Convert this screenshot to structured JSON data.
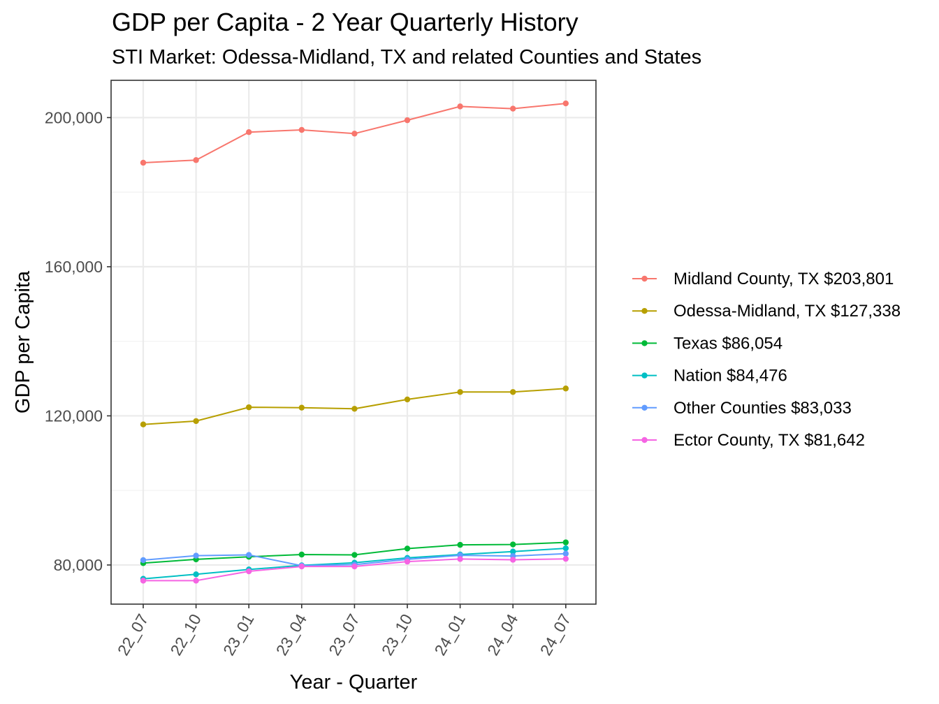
{
  "chart_data": {
    "type": "line",
    "title": "GDP per Capita - 2 Year Quarterly History",
    "subtitle": "STI Market: Odessa-Midland, TX and related Counties and States",
    "xlabel": "Year - Quarter",
    "ylabel": "GDP per Capita",
    "categories": [
      "22_07",
      "22_10",
      "23_01",
      "23_04",
      "23_07",
      "23_10",
      "24_01",
      "24_04",
      "24_07"
    ],
    "ylim": [
      69500,
      210000
    ],
    "yticks": [
      80000,
      120000,
      160000,
      200000
    ],
    "ytick_labels": [
      "80,000",
      "120,000",
      "160,000",
      "200,000"
    ],
    "grid": true,
    "legend_position": "right",
    "series": [
      {
        "name": "Midland County, TX $203,801",
        "color": "#F8766D",
        "values": [
          187900,
          188600,
          196100,
          196700,
          195700,
          199300,
          203000,
          202400,
          203801
        ]
      },
      {
        "name": "Odessa-Midland, TX $127,338",
        "color": "#B79F00",
        "values": [
          117700,
          118600,
          122300,
          122200,
          121900,
          124400,
          126400,
          126400,
          127338
        ]
      },
      {
        "name": "Texas $86,054",
        "color": "#00BA38",
        "values": [
          80500,
          81500,
          82200,
          82800,
          82700,
          84400,
          85400,
          85500,
          86054
        ]
      },
      {
        "name": "Nation $84,476",
        "color": "#00BFC4",
        "values": [
          76300,
          77500,
          78800,
          79900,
          80600,
          81900,
          82800,
          83600,
          84476
        ]
      },
      {
        "name": "Other Counties $83,033",
        "color": "#619CFF",
        "values": [
          81300,
          82500,
          82700,
          79800,
          80100,
          81500,
          82600,
          82400,
          83033
        ]
      },
      {
        "name": "Ector County, TX $81,642",
        "color": "#F564E3",
        "values": [
          75800,
          75800,
          78300,
          79600,
          79600,
          80900,
          81600,
          81400,
          81642
        ]
      }
    ]
  }
}
